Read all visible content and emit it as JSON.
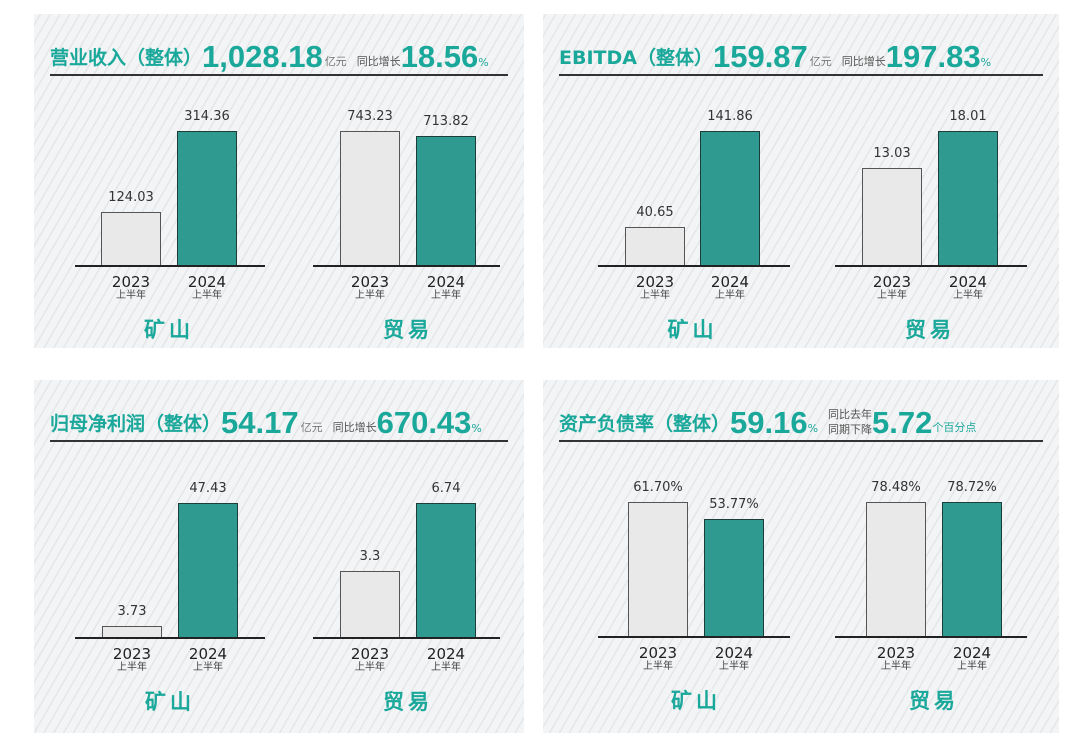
{
  "colors": {
    "accent": "#1aa89b",
    "bar_2023": "#e9e9e9",
    "bar_2024": "#2f9a8f"
  },
  "period_label": "上半年",
  "chart_data": [
    {
      "type": "bar",
      "title": "营业收入（整体）",
      "headline": "1,028.18",
      "headline_unit": "亿元",
      "change_label": "同比增长",
      "change": "18.56",
      "change_unit": "%",
      "groups": [
        {
          "name": "矿山",
          "categories": [
            "2023",
            "2024"
          ],
          "values": [
            124.03,
            314.36
          ],
          "labels": [
            "124.03",
            "314.36"
          ]
        },
        {
          "name": "贸易",
          "categories": [
            "2023",
            "2024"
          ],
          "values": [
            743.23,
            713.82
          ],
          "labels": [
            "743.23",
            "713.82"
          ]
        }
      ]
    },
    {
      "type": "bar",
      "title": "EBITDA（整体）",
      "headline": "159.87",
      "headline_unit": "亿元",
      "change_label": "同比增长",
      "change": "197.83",
      "change_unit": "%",
      "groups": [
        {
          "name": "矿山",
          "categories": [
            "2023",
            "2024"
          ],
          "values": [
            40.65,
            141.86
          ],
          "labels": [
            "40.65",
            "141.86"
          ]
        },
        {
          "name": "贸易",
          "categories": [
            "2023",
            "2024"
          ],
          "values": [
            13.03,
            18.01
          ],
          "labels": [
            "13.03",
            "18.01"
          ]
        }
      ]
    },
    {
      "type": "bar",
      "title": "归母净利润（整体）",
      "headline": "54.17",
      "headline_unit": "亿元",
      "change_label": "同比增长",
      "change": "670.43",
      "change_unit": "%",
      "groups": [
        {
          "name": "矿山",
          "categories": [
            "2023",
            "2024"
          ],
          "values": [
            3.73,
            47.43
          ],
          "labels": [
            "3.73",
            "47.43"
          ]
        },
        {
          "name": "贸易",
          "categories": [
            "2023",
            "2024"
          ],
          "values": [
            3.3,
            6.74
          ],
          "labels": [
            "3.3",
            "6.74"
          ]
        }
      ]
    },
    {
      "type": "bar",
      "title": "资产负债率（整体）",
      "headline": "59.16",
      "headline_unit": "%",
      "change_label_1": "同比去年",
      "change_label_2": "同期下降",
      "change": "5.72",
      "change_unit": "个百分点",
      "groups": [
        {
          "name": "矿山",
          "categories": [
            "2023",
            "2024"
          ],
          "values": [
            61.7,
            53.77
          ],
          "labels": [
            "61.70%",
            "53.77%"
          ]
        },
        {
          "name": "贸易",
          "categories": [
            "2023",
            "2024"
          ],
          "values": [
            78.48,
            78.72
          ],
          "labels": [
            "78.48%",
            "78.72%"
          ]
        }
      ]
    }
  ]
}
